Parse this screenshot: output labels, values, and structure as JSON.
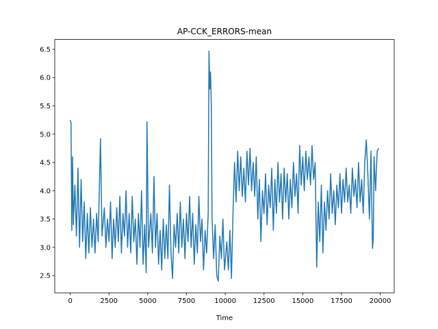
{
  "chart_data": {
    "type": "line",
    "title": "AP-CCK_ERRORS-mean",
    "xlabel": "Time",
    "x": [
      0,
      50,
      100,
      150,
      200,
      300,
      400,
      500,
      600,
      700,
      800,
      900,
      1000,
      1100,
      1200,
      1300,
      1400,
      1500,
      1600,
      1700,
      1800,
      1950,
      2050,
      2200,
      2300,
      2400,
      2500,
      2600,
      2700,
      2800,
      2900,
      3000,
      3100,
      3200,
      3300,
      3400,
      3500,
      3600,
      3700,
      3800,
      3900,
      4000,
      4100,
      4200,
      4300,
      4400,
      4500,
      4600,
      4700,
      4800,
      4900,
      4950,
      5050,
      5200,
      5300,
      5400,
      5500,
      5600,
      5700,
      5800,
      5900,
      6000,
      6100,
      6200,
      6300,
      6400,
      6500,
      6600,
      6700,
      6800,
      6900,
      7000,
      7100,
      7200,
      7300,
      7400,
      7500,
      7600,
      7700,
      7800,
      7900,
      8000,
      8100,
      8200,
      8300,
      8400,
      8500,
      8600,
      8700,
      8800,
      8900,
      8950,
      9000,
      9050,
      9100,
      9150,
      9250,
      9350,
      9450,
      9550,
      9650,
      9750,
      9850,
      9950,
      10100,
      10200,
      10300,
      10400,
      10500,
      10600,
      10700,
      10800,
      10900,
      11000,
      11100,
      11200,
      11300,
      11400,
      11500,
      11600,
      11700,
      11800,
      11900,
      12000,
      12100,
      12200,
      12300,
      12400,
      12500,
      12600,
      12700,
      12800,
      12900,
      13000,
      13100,
      13200,
      13300,
      13400,
      13500,
      13600,
      13700,
      13800,
      13900,
      14000,
      14100,
      14200,
      14300,
      14400,
      14500,
      14600,
      14700,
      14800,
      14900,
      15000,
      15100,
      15200,
      15300,
      15400,
      15500,
      15600,
      15700,
      15800,
      15900,
      16000,
      16100,
      16200,
      16300,
      16400,
      16500,
      16600,
      16700,
      16800,
      16900,
      17000,
      17100,
      17200,
      17300,
      17400,
      17500,
      17600,
      17700,
      17800,
      17900,
      18000,
      18100,
      18200,
      18300,
      18400,
      18500,
      18600,
      18700,
      18800,
      18900,
      19000,
      19100,
      19200,
      19300,
      19400,
      19500,
      19550,
      19600,
      19700,
      19800,
      19900
    ],
    "series": [
      {
        "name": "AP-CCK_ERRORS-mean",
        "color": "#1f77b4",
        "values": [
          5.25,
          5.2,
          3.3,
          4.6,
          3.4,
          4.1,
          3.2,
          4.4,
          3.0,
          4.2,
          3.1,
          3.8,
          2.8,
          3.6,
          2.9,
          3.7,
          3.0,
          3.5,
          2.9,
          3.6,
          3.1,
          4.92,
          3.2,
          3.7,
          3.0,
          3.5,
          3.1,
          3.8,
          2.8,
          3.5,
          3.0,
          3.7,
          3.1,
          3.9,
          2.9,
          3.6,
          3.2,
          4.0,
          3.0,
          3.6,
          2.9,
          3.9,
          3.1,
          3.5,
          2.7,
          3.6,
          3.0,
          4.0,
          2.7,
          3.4,
          2.55,
          5.22,
          3.0,
          3.6,
          2.9,
          4.25,
          3.0,
          3.6,
          2.7,
          3.3,
          2.6,
          3.5,
          2.8,
          3.4,
          2.8,
          4.1,
          2.9,
          2.45,
          3.4,
          3.0,
          3.6,
          2.9,
          3.8,
          3.0,
          3.5,
          2.8,
          3.6,
          3.1,
          3.9,
          3.0,
          3.6,
          2.7,
          3.4,
          2.9,
          3.9,
          3.1,
          3.5,
          2.6,
          3.3,
          2.9,
          3.6,
          6.47,
          5.8,
          6.1,
          5.5,
          3.5,
          2.8,
          3.4,
          2.5,
          2.4,
          3.2,
          2.8,
          3.5,
          2.6,
          3.1,
          2.6,
          3.3,
          2.45,
          3.6,
          4.5,
          3.8,
          4.7,
          4.0,
          4.6,
          3.9,
          4.4,
          3.8,
          4.7,
          4.1,
          4.75,
          4.0,
          4.5,
          3.9,
          4.6,
          3.5,
          4.2,
          3.1,
          4.0,
          3.6,
          4.3,
          3.4,
          4.1,
          3.7,
          4.4,
          3.3,
          4.2,
          3.6,
          4.5,
          3.8,
          4.3,
          3.5,
          4.4,
          3.8,
          4.3,
          3.5,
          4.2,
          3.7,
          4.5,
          3.9,
          4.3,
          3.6,
          4.8,
          4.1,
          4.6,
          4.0,
          4.7,
          4.2,
          4.6,
          4.1,
          4.8,
          4.2,
          4.5,
          2.65,
          3.8,
          3.1,
          4.1,
          2.9,
          3.8,
          3.3,
          4.0,
          3.5,
          4.3,
          3.6,
          4.0,
          3.4,
          4.1,
          3.7,
          4.3,
          3.6,
          4.2,
          3.8,
          4.4,
          3.8,
          4.1,
          3.6,
          4.4,
          3.9,
          4.2,
          3.7,
          4.5,
          3.8,
          4.2,
          3.6,
          4.5,
          4.9,
          4.3,
          3.5,
          4.7,
          2.98,
          3.15,
          4.6,
          4.0,
          4.7,
          4.75
        ]
      }
    ],
    "xlim": [
      -1000,
      20900
    ],
    "ylim": [
      2.196,
      6.674
    ],
    "xticks": [
      0,
      2500,
      5000,
      7500,
      10000,
      12500,
      15000,
      17500,
      20000
    ],
    "yticks": [
      2.5,
      {
        "value": 3,
        "label": "3.0"
      },
      3.5,
      {
        "value": 4,
        "label": "4.0"
      },
      4.5,
      {
        "value": 5,
        "label": "5.0"
      },
      5.5,
      {
        "value": 6,
        "label": "6.0"
      },
      6.5
    ],
    "grid": false
  }
}
